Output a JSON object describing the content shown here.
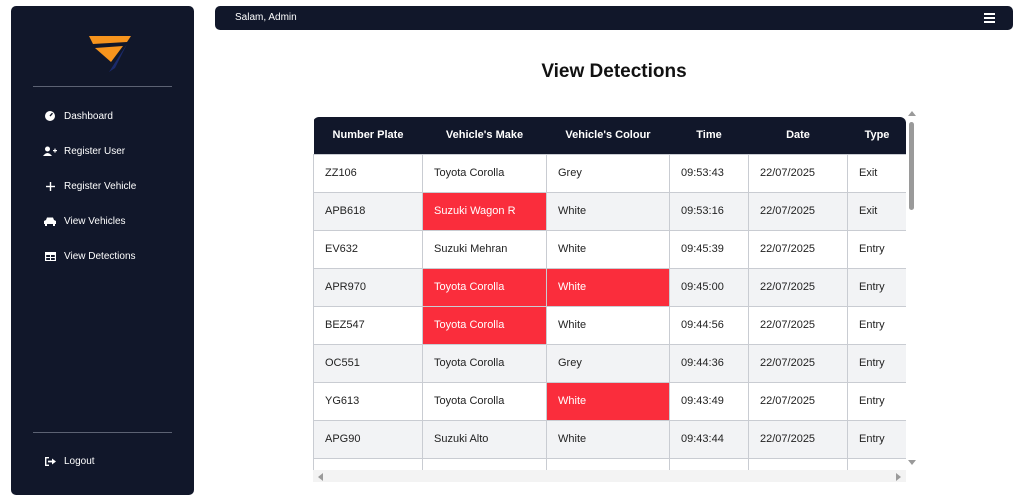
{
  "sidebar": {
    "items": [
      {
        "label": "Dashboard",
        "icon": "dashboard-icon"
      },
      {
        "label": "Register User",
        "icon": "user-plus-icon"
      },
      {
        "label": "Register Vehicle",
        "icon": "plus-icon"
      },
      {
        "label": "View Vehicles",
        "icon": "car-icon"
      },
      {
        "label": "View Detections",
        "icon": "table-icon"
      }
    ],
    "logout": {
      "label": "Logout",
      "icon": "logout-icon"
    }
  },
  "header": {
    "greeting": "Salam, Admin",
    "menu_icon": "hamburger-menu-icon"
  },
  "main": {
    "title": "View Detections",
    "table": {
      "columns": [
        "Number Plate",
        "Vehicle's Make",
        "Vehicle's Colour",
        "Time",
        "Date",
        "Type"
      ],
      "rows": [
        {
          "plate": "ZZ106",
          "make": "Toyota Corolla",
          "colour": "Grey",
          "time": "09:53:43",
          "date": "22/07/2025",
          "type": "Exit",
          "make_alert": false,
          "colour_alert": false
        },
        {
          "plate": "APB618",
          "make": "Suzuki Wagon R",
          "colour": "White",
          "time": "09:53:16",
          "date": "22/07/2025",
          "type": "Exit",
          "make_alert": true,
          "colour_alert": false
        },
        {
          "plate": "EV632",
          "make": "Suzuki Mehran",
          "colour": "White",
          "time": "09:45:39",
          "date": "22/07/2025",
          "type": "Entry",
          "make_alert": false,
          "colour_alert": false
        },
        {
          "plate": "APR970",
          "make": "Toyota Corolla",
          "colour": "White",
          "time": "09:45:00",
          "date": "22/07/2025",
          "type": "Entry",
          "make_alert": true,
          "colour_alert": true
        },
        {
          "plate": "BEZ547",
          "make": "Toyota Corolla",
          "colour": "White",
          "time": "09:44:56",
          "date": "22/07/2025",
          "type": "Entry",
          "make_alert": true,
          "colour_alert": false
        },
        {
          "plate": "OC551",
          "make": "Toyota Corolla",
          "colour": "Grey",
          "time": "09:44:36",
          "date": "22/07/2025",
          "type": "Entry",
          "make_alert": false,
          "colour_alert": false
        },
        {
          "plate": "YG613",
          "make": "Toyota Corolla",
          "colour": "White",
          "time": "09:43:49",
          "date": "22/07/2025",
          "type": "Entry",
          "make_alert": false,
          "colour_alert": true
        },
        {
          "plate": "APG90",
          "make": "Suzuki Alto",
          "colour": "White",
          "time": "09:43:44",
          "date": "22/07/2025",
          "type": "Entry",
          "make_alert": false,
          "colour_alert": false
        },
        {
          "plate": "",
          "make": "",
          "colour": "",
          "time": "",
          "date": "",
          "type": "",
          "make_alert": false,
          "colour_alert": false
        }
      ]
    }
  },
  "colors": {
    "sidebar_bg": "#11172a",
    "alert": "#fa2d3c",
    "logo_orange": "#f7941d",
    "logo_navy": "#1b2a6b"
  }
}
